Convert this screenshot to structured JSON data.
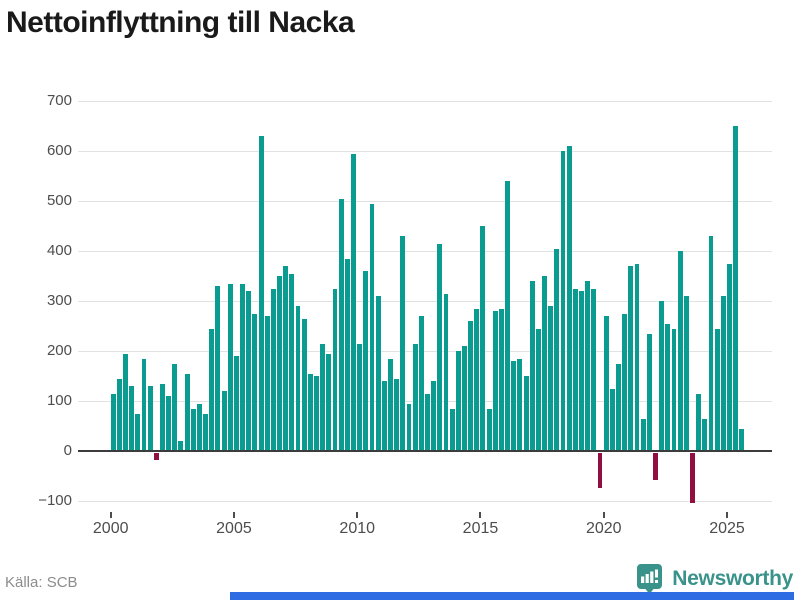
{
  "header": {
    "title": "Nettoinflyttning till Nacka"
  },
  "footer": {
    "source": "Källa: SCB",
    "brand": "Newsworthy"
  },
  "colors": {
    "positive_bar": "#0a9c91",
    "negative_bar": "#8f1040",
    "brand_teal": "#3a938a",
    "bottom_strip_blue": "#2d6ce2",
    "grid": "#e2e2e2",
    "zero_line": "#3c3c3c",
    "axis_text": "#4d4d4d",
    "source_text": "#8c8c8c",
    "title_text": "#1a1a1a"
  },
  "chart_data": {
    "type": "bar",
    "title": "Nettoinflyttning till Nacka",
    "grid": true,
    "legend_position": "none",
    "ylim": [
      -100,
      700
    ],
    "y_ticks": [
      700,
      600,
      500,
      400,
      300,
      200,
      100,
      0,
      -100
    ],
    "y_tick_labels": [
      "700",
      "600",
      "500",
      "400",
      "300",
      "200",
      "100",
      "0",
      "−100"
    ],
    "x_tick_years": [
      "2000",
      "2005",
      "2010",
      "2015",
      "2020",
      "2025"
    ],
    "categories": [
      "2000 Q1",
      "2000 Q2",
      "2000 Q3",
      "2000 Q4",
      "2001 Q1",
      "2001 Q2",
      "2001 Q3",
      "2001 Q4",
      "2002 Q1",
      "2002 Q2",
      "2002 Q3",
      "2002 Q4",
      "2003 Q1",
      "2003 Q2",
      "2003 Q3",
      "2003 Q4",
      "2004 Q1",
      "2004 Q2",
      "2004 Q3",
      "2004 Q4",
      "2005 Q1",
      "2005 Q2",
      "2005 Q3",
      "2005 Q4",
      "2006 Q1",
      "2006 Q2",
      "2006 Q3",
      "2006 Q4",
      "2007 Q1",
      "2007 Q2",
      "2007 Q3",
      "2007 Q4",
      "2008 Q1",
      "2008 Q2",
      "2008 Q3",
      "2008 Q4",
      "2009 Q1",
      "2009 Q2",
      "2009 Q3",
      "2009 Q4",
      "2010 Q1",
      "2010 Q2",
      "2010 Q3",
      "2010 Q4",
      "2011 Q1",
      "2011 Q2",
      "2011 Q3",
      "2011 Q4",
      "2012 Q1",
      "2012 Q2",
      "2012 Q3",
      "2012 Q4",
      "2013 Q1",
      "2013 Q2",
      "2013 Q3",
      "2013 Q4",
      "2014 Q1",
      "2014 Q2",
      "2014 Q3",
      "2014 Q4",
      "2015 Q1",
      "2015 Q2",
      "2015 Q3",
      "2015 Q4",
      "2016 Q1",
      "2016 Q2",
      "2016 Q3",
      "2016 Q4",
      "2017 Q1",
      "2017 Q2",
      "2017 Q3",
      "2017 Q4",
      "2018 Q1",
      "2018 Q2",
      "2018 Q3",
      "2018 Q4",
      "2019 Q1",
      "2019 Q2",
      "2019 Q3",
      "2019 Q4",
      "2020 Q1",
      "2020 Q2",
      "2020 Q3",
      "2020 Q4",
      "2021 Q1",
      "2021 Q2",
      "2021 Q3",
      "2021 Q4",
      "2022 Q1",
      "2022 Q2",
      "2022 Q3",
      "2022 Q4",
      "2023 Q1",
      "2023 Q2",
      "2023 Q3",
      "2023 Q4",
      "2024 Q1",
      "2024 Q2",
      "2024 Q3",
      "2024 Q4",
      "2025 Q1",
      "2025 Q2",
      "2025 Q3"
    ],
    "values": [
      115,
      145,
      195,
      130,
      75,
      185,
      130,
      -15,
      135,
      110,
      175,
      20,
      155,
      85,
      95,
      75,
      245,
      330,
      120,
      335,
      190,
      335,
      320,
      275,
      630,
      270,
      325,
      350,
      370,
      355,
      290,
      265,
      155,
      150,
      215,
      195,
      325,
      505,
      385,
      595,
      215,
      360,
      495,
      310,
      140,
      185,
      145,
      430,
      95,
      215,
      270,
      115,
      140,
      415,
      315,
      85,
      200,
      210,
      260,
      285,
      450,
      85,
      280,
      285,
      540,
      180,
      185,
      150,
      340,
      245,
      350,
      290,
      405,
      600,
      610,
      325,
      320,
      340,
      325,
      -70,
      270,
      125,
      175,
      275,
      370,
      375,
      65,
      235,
      -55,
      300,
      255,
      245,
      400,
      310,
      -100,
      115,
      65,
      430,
      245,
      310,
      375,
      650,
      45
    ]
  }
}
